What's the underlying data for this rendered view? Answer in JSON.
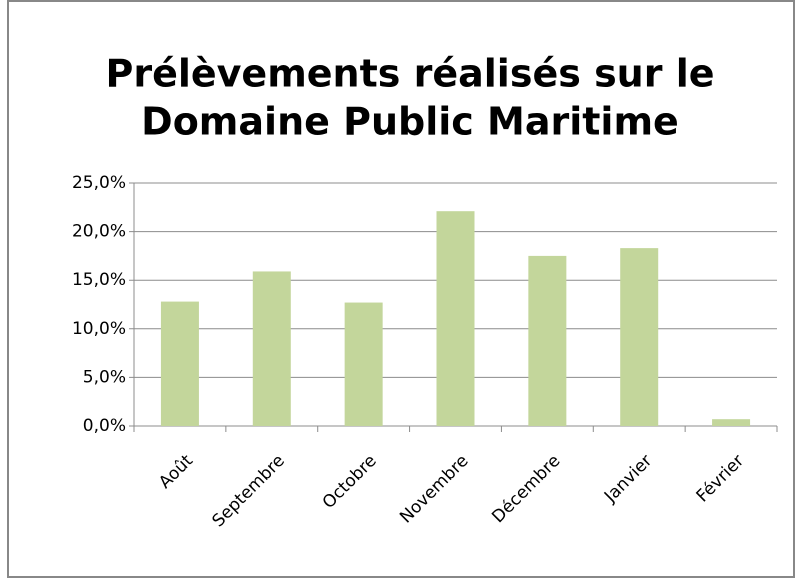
{
  "chart_data": {
    "type": "bar",
    "title": [
      "Prélèvements réalisés sur le",
      "Domaine Public Maritime"
    ],
    "categories": [
      "Août",
      "Septembre",
      "Octobre",
      "Novembre",
      "Décembre",
      "Janvier",
      "Février"
    ],
    "values": [
      12.8,
      15.9,
      12.7,
      22.1,
      17.5,
      18.3,
      0.7
    ],
    "color": "#c3d69b",
    "ylim": [
      0,
      25
    ],
    "yticks": [
      {
        "value": 0,
        "label": "0,0%"
      },
      {
        "value": 5,
        "label": "5,0%"
      },
      {
        "value": 10,
        "label": "10,0%"
      },
      {
        "value": 15,
        "label": "15,0%"
      },
      {
        "value": 20,
        "label": "20,0%"
      },
      {
        "value": 25,
        "label": "25,0%"
      }
    ],
    "grid": true
  }
}
